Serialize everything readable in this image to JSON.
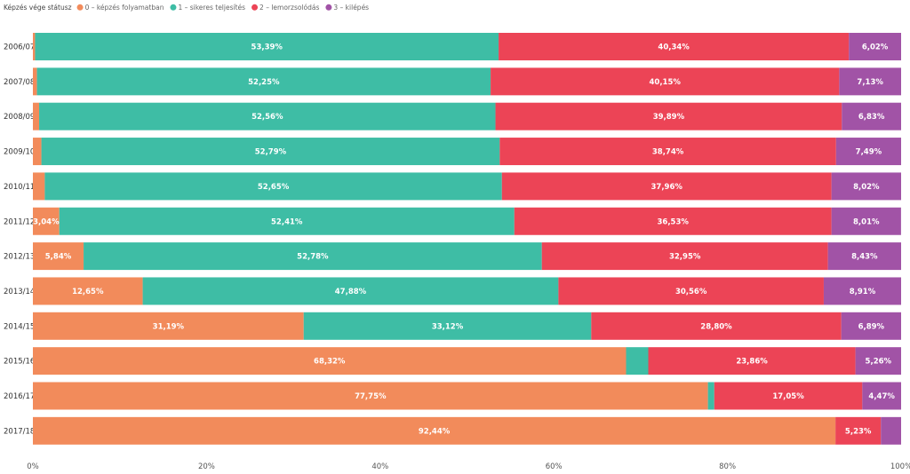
{
  "chart_data": {
    "type": "bar",
    "orientation": "horizontal",
    "stacked": true,
    "normalized": true,
    "legend_title": "Képzés vége státusz",
    "legend_position": "top-left",
    "categories": [
      "2006/07",
      "2007/08",
      "2008/09",
      "2009/10",
      "2010/11",
      "2011/12",
      "2012/13",
      "2013/14",
      "2014/15",
      "2015/16",
      "2016/17",
      "2017/18"
    ],
    "series": [
      {
        "name": "0 – képzés folyamatban",
        "color": "#F28B5B",
        "values": [
          0.25,
          0.47,
          0.72,
          0.98,
          1.37,
          3.04,
          5.84,
          12.65,
          31.19,
          68.32,
          77.75,
          92.44
        ],
        "labels": [
          "",
          "",
          "",
          "",
          "",
          "3,04%",
          "5,84%",
          "12,65%",
          "31,19%",
          "68,32%",
          "77,75%",
          "92,44%"
        ]
      },
      {
        "name": "1 – sikeres teljesítés",
        "color": "#3EBDA5",
        "values": [
          53.39,
          52.25,
          52.56,
          52.79,
          52.65,
          52.41,
          52.78,
          47.88,
          33.12,
          2.56,
          0.73,
          0.0
        ],
        "labels": [
          "53,39%",
          "52,25%",
          "52,56%",
          "52,79%",
          "52,65%",
          "52,41%",
          "52,78%",
          "47,88%",
          "33,12%",
          "",
          "",
          ""
        ]
      },
      {
        "name": "2 – lemorzsolódás",
        "color": "#EC4456",
        "values": [
          40.34,
          40.15,
          39.89,
          38.74,
          37.96,
          36.53,
          32.95,
          30.56,
          28.8,
          23.86,
          17.05,
          5.23
        ],
        "labels": [
          "40,34%",
          "40,15%",
          "39,89%",
          "38,74%",
          "37,96%",
          "36,53%",
          "32,95%",
          "30,56%",
          "28,80%",
          "23,86%",
          "17,05%",
          "5,23%"
        ]
      },
      {
        "name": "3 – kilépés",
        "color": "#A153A6",
        "values": [
          6.02,
          7.13,
          6.83,
          7.49,
          8.02,
          8.01,
          8.43,
          8.91,
          6.89,
          5.26,
          4.47,
          2.33
        ],
        "labels": [
          "6,02%",
          "7,13%",
          "6,83%",
          "7,49%",
          "8,02%",
          "8,01%",
          "8,43%",
          "8,91%",
          "6,89%",
          "5,26%",
          "4,47%",
          ""
        ]
      }
    ],
    "xlim": [
      0,
      100
    ],
    "x_ticks": [
      0,
      20,
      40,
      60,
      80,
      100
    ],
    "x_tick_labels": [
      "0%",
      "20%",
      "40%",
      "60%",
      "80%",
      "100%"
    ]
  }
}
